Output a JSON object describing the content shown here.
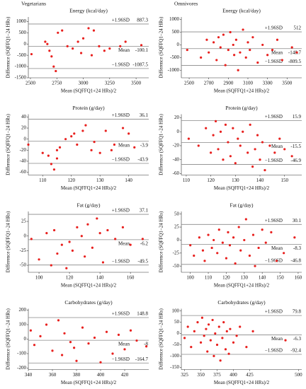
{
  "panel_groups": [
    "Vegetarians",
    "Omnivores"
  ],
  "chart_data": [
    {
      "type": "scatter",
      "title": "Energy (kcal/day)",
      "x_label": "Mean (SQFFQ1+24 HRs)/2",
      "y_label": "Difference (SQFFQ1−24 HRs)",
      "color": "#e8201e",
      "x": [
        2510,
        2640,
        2660,
        2680,
        2700,
        2720,
        2740,
        2760,
        2800,
        2850,
        2900,
        2950,
        2980,
        3000,
        3050,
        3080,
        3100,
        3150,
        3200,
        3250,
        3350,
        3400,
        3550
      ],
      "values": [
        -450,
        100,
        0,
        -300,
        -550,
        -1000,
        -1200,
        500,
        600,
        -100,
        -200,
        100,
        -400,
        250,
        700,
        -500,
        600,
        -100,
        -300,
        -200,
        -100,
        100,
        -50
      ],
      "xlim": [
        2480,
        3620
      ],
      "xticks": [
        2500,
        2750,
        3000,
        3250,
        3500
      ],
      "ylim": [
        -1500,
        1200
      ],
      "yticks": [
        1000,
        500,
        0,
        -500,
        -1000,
        -1500
      ],
      "reference_lines": [
        {
          "label": "+1.96SD",
          "value": 887.3
        },
        {
          "label": "Mean",
          "value": -100.1
        },
        {
          "label": "−1.96SD",
          "value": -1087.5
        }
      ]
    },
    {
      "type": "scatter",
      "title": "Energy (kcal/day)",
      "x_label": "Mean (SQFFQ1+24 HRs)/2",
      "y_label": "Difference (SQFFQ1−24 HRs)",
      "color": "#e8201e",
      "x": [
        2480,
        2620,
        2680,
        2700,
        2750,
        2780,
        2800,
        2820,
        2850,
        2870,
        2900,
        2920,
        2950,
        2960,
        2980,
        3000,
        3020,
        3050,
        3080,
        3100,
        3120,
        3150,
        3200,
        3250,
        3300,
        3350,
        3400,
        3450,
        3550,
        3600
      ],
      "values": [
        -200,
        -500,
        200,
        -300,
        100,
        -600,
        300,
        -100,
        400,
        -800,
        -200,
        500,
        0,
        -400,
        200,
        -1000,
        -300,
        600,
        -500,
        100,
        -200,
        300,
        -700,
        0,
        -400,
        -200,
        200,
        -600,
        -100,
        -300
      ],
      "xlim": [
        2420,
        3650
      ],
      "xticks": [
        2500,
        2700,
        2900,
        3100,
        3300,
        3500
      ],
      "ylim": [
        -1300,
        1100
      ],
      "yticks": [
        1000,
        500,
        0,
        -500,
        -1000
      ],
      "reference_lines": [
        {
          "label": "+1.96SD",
          "value": 512.0
        },
        {
          "label": "Mean",
          "value": -148.7
        },
        {
          "label": "−1.96SD",
          "value": -809.5
        }
      ]
    },
    {
      "type": "scatter",
      "title": "Protein (g/day)",
      "x_label": "Mean (SQFFQ1+24 HRs)/2",
      "y_label": "Difference (SQFFQ1−24 HRs)",
      "color": "#e8201e",
      "x": [
        105,
        110,
        112,
        113,
        114,
        115,
        115,
        116,
        118,
        120,
        121,
        122,
        124,
        125,
        127,
        128,
        130,
        132,
        134,
        135,
        138,
        140,
        142
      ],
      "values": [
        -10,
        -25,
        -30,
        -45,
        -55,
        -20,
        -35,
        -15,
        0,
        5,
        10,
        -10,
        15,
        25,
        -20,
        -5,
        -25,
        15,
        -20,
        -10,
        20,
        10,
        -15
      ],
      "xlim": [
        105,
        147
      ],
      "xticks": [
        110,
        120,
        130,
        140
      ],
      "ylim": [
        -65,
        45
      ],
      "yticks": [
        40,
        20,
        0,
        -20,
        -40,
        -60
      ],
      "reference_lines": [
        {
          "label": "+1.96SD",
          "value": 36.1
        },
        {
          "label": "Mean",
          "value": -3.9
        },
        {
          "label": "−1.96SD",
          "value": -43.9
        }
      ]
    },
    {
      "type": "scatter",
      "title": "Protein (g/day)",
      "x_label": "Mean (SQFFQ1+24 HRs)/2",
      "y_label": "Difference (SQFFQ1−24 HRs)",
      "color": "#e8201e",
      "x": [
        111,
        115,
        118,
        120,
        121,
        122,
        123,
        124,
        125,
        126,
        127,
        128,
        129,
        130,
        131,
        132,
        133,
        135,
        136,
        137,
        138,
        139,
        140,
        141,
        142,
        144,
        146,
        148,
        150,
        153
      ],
      "values": [
        -10,
        -20,
        5,
        -30,
        -5,
        15,
        -25,
        0,
        -40,
        10,
        -15,
        -35,
        5,
        -45,
        -10,
        -20,
        0,
        -30,
        10,
        -50,
        -25,
        -5,
        -40,
        -15,
        -55,
        -20,
        -30,
        -10,
        -25,
        -35
      ],
      "xlim": [
        108,
        157
      ],
      "xticks": [
        110,
        120,
        130,
        140,
        150
      ],
      "ylim": [
        -62,
        25
      ],
      "yticks": [
        20,
        0,
        -20,
        -40,
        -60
      ],
      "reference_lines": [
        {
          "label": "+1.96SD",
          "value": 15.9
        },
        {
          "label": "Mean",
          "value": -15.5
        },
        {
          "label": "−1.96SD",
          "value": -46.9
        }
      ]
    },
    {
      "type": "scatter",
      "title": "Fat (g/day)",
      "x_label": "Mean (SQFFQ1+24 HRs)/2",
      "y_label": "Difference (SQFFQ1−24 HRs)",
      "color": "#e8201e",
      "x": [
        95,
        100,
        105,
        108,
        110,
        112,
        115,
        118,
        120,
        122,
        125,
        128,
        130,
        132,
        135,
        138,
        140,
        142,
        145,
        150,
        155,
        160,
        168
      ],
      "values": [
        -5,
        -40,
        5,
        -50,
        10,
        -30,
        -15,
        -55,
        -10,
        -25,
        15,
        0,
        -35,
        20,
        -20,
        30,
        5,
        -45,
        10,
        -5,
        15,
        -15,
        -5
      ],
      "xlim": [
        93,
        172
      ],
      "xticks": [
        100,
        120,
        140,
        160
      ],
      "ylim": [
        -62,
        42
      ],
      "yticks": [
        25,
        0,
        -25,
        -50
      ],
      "reference_lines": [
        {
          "label": "+1.96SD",
          "value": 37.1
        },
        {
          "label": "Mean",
          "value": -6.2
        },
        {
          "label": "−1.96SD",
          "value": -49.5
        }
      ]
    },
    {
      "type": "scatter",
      "title": "Fat (g/day)",
      "x_label": "Mean (SQFFQ1+24 HRs)/2",
      "y_label": "Difference (SQFFQ1−24 HRs)",
      "color": "#e8201e",
      "x": [
        100,
        102,
        105,
        107,
        108,
        110,
        112,
        113,
        115,
        116,
        118,
        120,
        121,
        122,
        124,
        125,
        127,
        128,
        130,
        131,
        133,
        135,
        136,
        138,
        140,
        142,
        145,
        148,
        152,
        158
      ],
      "values": [
        -10,
        -30,
        5,
        -20,
        -40,
        10,
        -15,
        0,
        -25,
        20,
        -5,
        -35,
        15,
        -10,
        5,
        -45,
        25,
        -20,
        0,
        40,
        -30,
        10,
        -50,
        -15,
        20,
        -5,
        15,
        -40,
        -25,
        5
      ],
      "xlim": [
        95,
        162
      ],
      "xticks": [
        100,
        110,
        120,
        130,
        140,
        150,
        160
      ],
      "ylim": [
        -62,
        55
      ],
      "yticks": [
        50,
        25,
        0,
        -25,
        -50
      ],
      "reference_lines": [
        {
          "label": "+1.96SD",
          "value": 30.1
        },
        {
          "label": "Mean",
          "value": -8.3
        },
        {
          "label": "−1.96SD",
          "value": -46.8
        }
      ]
    },
    {
      "type": "scatter",
      "title": "Carbohydrates (g/day)",
      "x_label": "Mean (SQFFQ1+24 HRs)/2",
      "y_label": "Difference (SQFFQ1−24 HRs)",
      "color": "#e8201e",
      "x": [
        342,
        345,
        350,
        355,
        360,
        365,
        368,
        370,
        375,
        378,
        380,
        385,
        390,
        395,
        400,
        405,
        410,
        415,
        420,
        425,
        430,
        438
      ],
      "values": [
        60,
        -40,
        20,
        100,
        -80,
        130,
        -110,
        40,
        -20,
        -60,
        -150,
        80,
        -30,
        10,
        -160,
        50,
        -100,
        30,
        -70,
        60,
        -10,
        -50
      ],
      "xlim": [
        340,
        440
      ],
      "xticks": [
        340,
        360,
        380,
        400,
        420
      ],
      "ylim": [
        -210,
        210
      ],
      "yticks": [
        200,
        100,
        0,
        -100,
        -200
      ],
      "reference_lines": [
        {
          "label": "+1.96SD",
          "value": 148.8
        },
        {
          "label": "Mean",
          "value": -8.0
        },
        {
          "label": "−1.96SD",
          "value": -164.7
        }
      ]
    },
    {
      "type": "scatter",
      "title": "Carbohydrates (g/day)",
      "x_label": "Mean (SQFFQ1+24 HRs)/2",
      "y_label": "Difference (SQFFQ1−24 HRs)",
      "color": "#e8201e",
      "x": [
        325,
        330,
        335,
        340,
        345,
        350,
        352,
        355,
        358,
        360,
        362,
        365,
        368,
        370,
        372,
        375,
        378,
        380,
        383,
        385,
        388,
        390,
        393,
        395,
        400,
        405,
        410,
        420,
        430,
        480
      ],
      "values": [
        -20,
        30,
        -60,
        10,
        50,
        -40,
        70,
        -10,
        20,
        -80,
        40,
        -30,
        60,
        -100,
        0,
        -50,
        30,
        -120,
        -20,
        50,
        -70,
        10,
        -90,
        20,
        -40,
        -10,
        30,
        -60,
        10,
        -30
      ],
      "xlim": [
        320,
        505
      ],
      "xticks": [
        325,
        350,
        375,
        400,
        425,
        500
      ],
      "ylim": [
        -160,
        110
      ],
      "yticks": [
        100,
        50,
        0,
        -50,
        -100,
        -150
      ],
      "reference_lines": [
        {
          "label": "+1.96SD",
          "value": 79.8
        },
        {
          "label": "Mean",
          "value": -6.3
        },
        {
          "label": "−1.96SD",
          "value": -92.4
        }
      ]
    }
  ]
}
